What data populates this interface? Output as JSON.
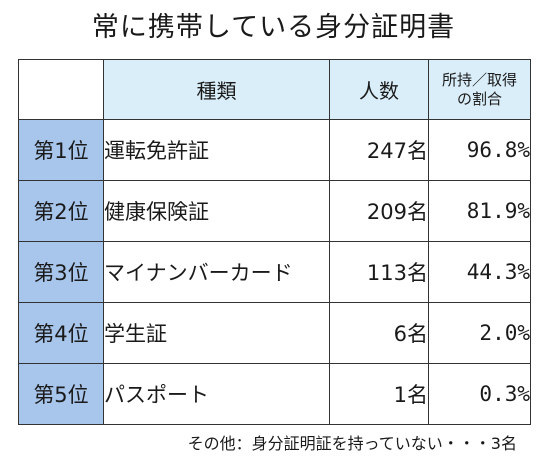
{
  "title": "常に携帯している身分証明書",
  "table": {
    "headers": {
      "type": "種類",
      "count": "人数",
      "ratio_line1": "所持／取得",
      "ratio_line2": "の割合"
    },
    "rows": [
      {
        "rank": "第1位",
        "type": "運転免許証",
        "count": "247名",
        "ratio": "96.8%"
      },
      {
        "rank": "第2位",
        "type": "健康保険証",
        "count": "209名",
        "ratio": "81.9%"
      },
      {
        "rank": "第3位",
        "type": "マイナンバーカード",
        "count": "113名",
        "ratio": "44.3%"
      },
      {
        "rank": "第4位",
        "type": "学生証",
        "count": "6名",
        "ratio": "2.0%"
      },
      {
        "rank": "第5位",
        "type": "パスポート",
        "count": "1名",
        "ratio": "0.3%"
      }
    ]
  },
  "note": "その他：身分証明証を持っていない・・・3名",
  "colors": {
    "header_bg": "#daeef9",
    "rank_bg": "#a8c6ec"
  }
}
